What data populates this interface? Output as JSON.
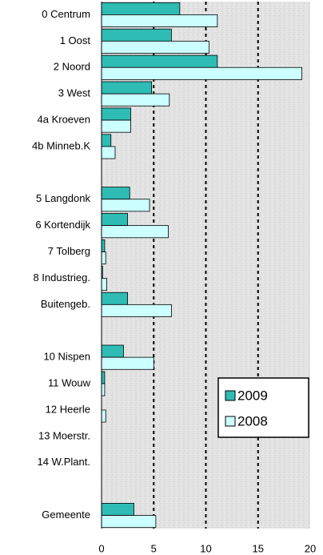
{
  "chart_data": {
    "type": "bar",
    "orientation": "horizontal",
    "categories": [
      "0 Centrum",
      "1 Oost",
      "2 Noord",
      "3 West",
      "4a Kroeven",
      "4b Minneb.K",
      null,
      "5 Langdonk",
      "6 Kortendijk",
      "7 Tolberg",
      "8 Industrieg.",
      "Buitengeb.",
      null,
      "10 Nispen",
      "11 Wouw",
      "12 Heerle",
      "13 Moerstr.",
      "14 W.Plant.",
      null,
      "Gemeente"
    ],
    "series": [
      {
        "name": "2009",
        "color": "#2fbcb4",
        "values": [
          7.5,
          6.7,
          11.1,
          4.8,
          2.8,
          0.9,
          null,
          2.7,
          2.5,
          0.3,
          0.1,
          2.5,
          null,
          2.1,
          0.3,
          0,
          0,
          0,
          null,
          3.1
        ]
      },
      {
        "name": "2008",
        "color": "#ccffff",
        "values": [
          11.1,
          10.3,
          19.2,
          6.5,
          2.8,
          1.3,
          null,
          4.6,
          6.4,
          0.4,
          0.5,
          6.7,
          null,
          5.0,
          0.3,
          0.4,
          0,
          0,
          null,
          5.2
        ]
      }
    ],
    "xlim": [
      0,
      20
    ],
    "xticks": [
      0,
      5,
      10,
      15,
      20
    ],
    "grid": true,
    "legend": "lower right"
  }
}
